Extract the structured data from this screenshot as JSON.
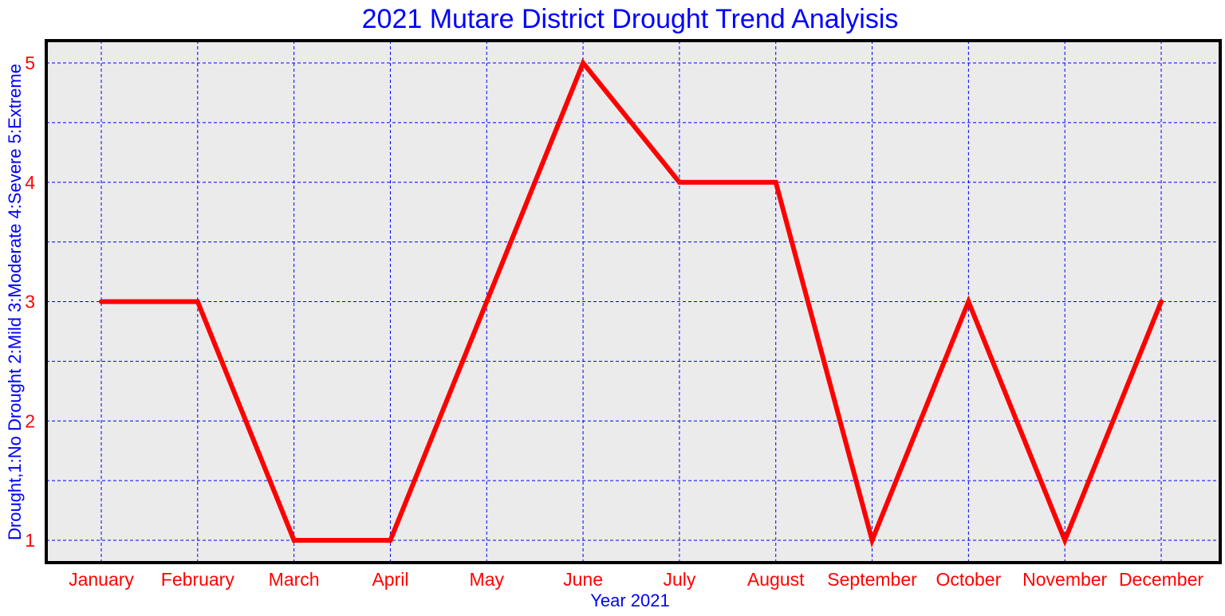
{
  "chart_data": {
    "type": "line",
    "title": "2021 Mutare District Drought Trend Analyisis",
    "xlabel": "Year 2021",
    "ylabel": "Drought,1:No Drought 2:Mild 3:Moderate 4:Severe 5:Extreme",
    "categories": [
      "January",
      "February",
      "March",
      "April",
      "May",
      "June",
      "July",
      "August",
      "September",
      "October",
      "November",
      "December"
    ],
    "series": [
      {
        "values": [
          3,
          3,
          1,
          1,
          3,
          5,
          4,
          4,
          1,
          3,
          1,
          3
        ]
      }
    ],
    "ylim": [
      0.8,
      5.2
    ],
    "yticks": [
      1,
      2,
      3,
      4,
      5
    ],
    "ygrid_minor": [
      1.5,
      2.5,
      3.5,
      4.5
    ],
    "grid": true,
    "colors": {
      "line": "#ff0000",
      "grid": "#0000ff",
      "plot_background": "#ebebeb",
      "frame": "#000000",
      "title": "#0000ff",
      "tick_labels": "#ff0000"
    }
  }
}
